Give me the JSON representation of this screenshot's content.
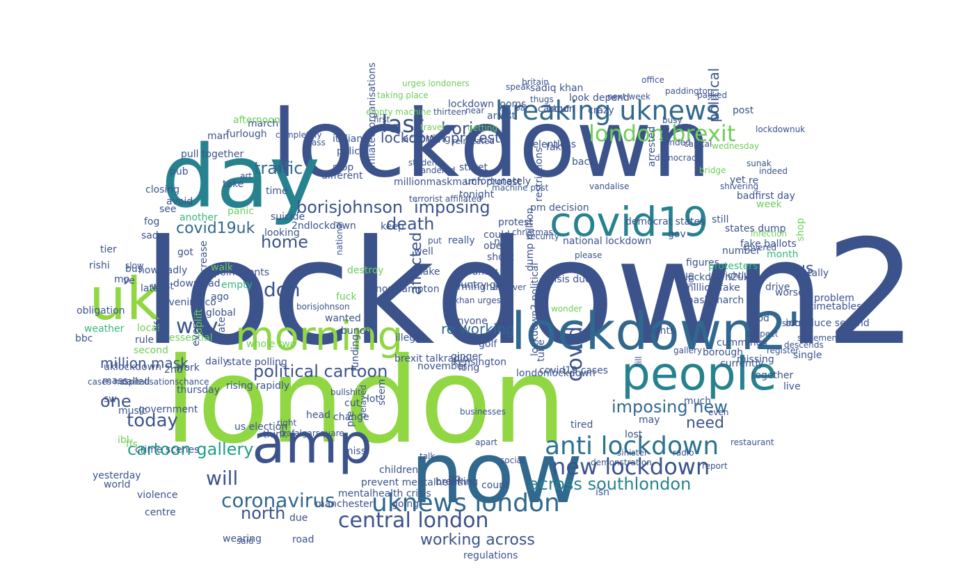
{
  "image": {
    "kind": "word cloud",
    "shape": "cloud",
    "background": "#ffffff",
    "palette": [
      "#3b528b",
      "#31688e",
      "#26828e",
      "#1f9e89",
      "#35b779",
      "#6ece58",
      "#90d743",
      "#b5de2b"
    ]
  },
  "words": [
    {
      "text": "lockdown2",
      "color": "#3b528b"
    },
    {
      "text": "london",
      "color": "#90d743"
    },
    {
      "text": "lockdown",
      "color": "#3b528b"
    },
    {
      "text": "day",
      "color": "#26828e"
    },
    {
      "text": "now",
      "color": "#31688e"
    },
    {
      "text": "amp",
      "color": "#3b528b"
    },
    {
      "text": "uk",
      "color": "#90d743"
    },
    {
      "text": "lockdown2'",
      "color": "#31688e"
    },
    {
      "text": "people",
      "color": "#26828e"
    },
    {
      "text": "covid19",
      "color": "#26828e"
    },
    {
      "text": "morning",
      "color": "#90d743"
    },
    {
      "text": "breaking uknews",
      "color": "#31688e"
    },
    {
      "text": "anti lockdown",
      "color": "#2c728e"
    },
    {
      "text": "uknews london",
      "color": "#31688e"
    },
    {
      "text": "new lockdown",
      "color": "#3b528b"
    },
    {
      "text": "london brexit",
      "color": "#6ece58"
    },
    {
      "text": "central london",
      "color": "#3b528b"
    },
    {
      "text": "coronavirus",
      "color": "#31688e"
    },
    {
      "text": "last",
      "color": "#3b528b"
    },
    {
      "text": "today",
      "color": "#3b528b"
    },
    {
      "text": "way",
      "color": "#3b528b"
    },
    {
      "text": "covid",
      "color": "#3b528b"
    },
    {
      "text": "death",
      "color": "#3b528b"
    },
    {
      "text": "home",
      "color": "#3b528b"
    },
    {
      "text": "don",
      "color": "#3b528b"
    },
    {
      "text": "will",
      "color": "#3b528b"
    },
    {
      "text": "one",
      "color": "#3b528b"
    },
    {
      "text": "north",
      "color": "#3b528b"
    },
    {
      "text": "traffic",
      "color": "#31688e"
    },
    {
      "text": "boris",
      "color": "#3b528b"
    },
    {
      "text": "borisjohnson",
      "color": "#3b528b"
    },
    {
      "text": "imposing",
      "color": "#3b528b"
    },
    {
      "text": "imposing new",
      "color": "#31688e"
    },
    {
      "text": "across southlondon",
      "color": "#26828e"
    },
    {
      "text": "political cartoon",
      "color": "#3b528b"
    },
    {
      "text": "cartoon gallery",
      "color": "#1f9e89"
    },
    {
      "text": "covid19uk",
      "color": "#31688e"
    },
    {
      "text": "lockdown protest",
      "color": "#3b528b"
    },
    {
      "text": "working across",
      "color": "#3b528b"
    },
    {
      "text": "re working",
      "color": "#31688e"
    },
    {
      "text": "affected",
      "color": "#3b528b"
    },
    {
      "text": "need",
      "color": "#3b528b"
    },
    {
      "text": "us",
      "color": "#3b528b"
    },
    {
      "text": "million mask",
      "color": "#3b528b"
    },
    {
      "text": "political",
      "color": "#3b528b"
    },
    {
      "text": "cartoon",
      "color": "#3b528b"
    },
    {
      "text": "sadiq khan",
      "color": "#3b528b"
    },
    {
      "text": "lockdown looms",
      "color": "#3b528b"
    },
    {
      "text": "restrictions",
      "color": "#3b528b"
    },
    {
      "text": "street",
      "color": "#3b528b"
    },
    {
      "text": "unfortunately",
      "color": "#3b528b"
    },
    {
      "text": "tonight",
      "color": "#3b528b"
    },
    {
      "text": "really",
      "color": "#3b528b"
    },
    {
      "text": "well",
      "color": "#3b528b"
    },
    {
      "text": "make",
      "color": "#3b528b"
    },
    {
      "text": "country",
      "color": "#3b528b"
    },
    {
      "text": "country goes",
      "color": "#3b528b"
    },
    {
      "text": "looking",
      "color": "#3b528b"
    },
    {
      "text": "got",
      "color": "#3b528b"
    },
    {
      "text": "gov",
      "color": "#3b528b"
    },
    {
      "text": "states dump",
      "color": "#3b528b"
    },
    {
      "text": "fake ballots",
      "color": "#3b528b"
    },
    {
      "text": "democrat states",
      "color": "#3b528b"
    },
    {
      "text": "national lockdown",
      "color": "#3b528b"
    },
    {
      "text": "million fake",
      "color": "#3b528b"
    },
    {
      "text": "mask march",
      "color": "#3b528b"
    },
    {
      "text": "lockdown2uk",
      "color": "#3b528b"
    },
    {
      "text": "figures",
      "color": "#3b528b"
    },
    {
      "text": "drive",
      "color": "#3b528b"
    },
    {
      "text": "much",
      "color": "#3b528b"
    },
    {
      "text": "may",
      "color": "#3b528b"
    },
    {
      "text": "lost",
      "color": "#3b528b"
    },
    {
      "text": "crisis due",
      "color": "#3b528b"
    },
    {
      "text": "dump million",
      "color": "#3b528b"
    },
    {
      "text": "lockdown2 political",
      "color": "#3b528b"
    },
    {
      "text": "tube",
      "color": "#3b528b"
    },
    {
      "text": "november",
      "color": "#3b528b"
    },
    {
      "text": "long",
      "color": "#3b528b"
    },
    {
      "text": "golf",
      "color": "#3b528b"
    },
    {
      "text": "ginger",
      "color": "#3b528b"
    },
    {
      "text": "rate",
      "color": "#3b528b"
    },
    {
      "text": "global",
      "color": "#3b528b"
    },
    {
      "text": "walk",
      "color": "#6ece58"
    },
    {
      "text": "police",
      "color": "#3b528b"
    },
    {
      "text": "take",
      "color": "#3b528b"
    },
    {
      "text": "time",
      "color": "#3b528b"
    },
    {
      "text": "see",
      "color": "#3b528b"
    },
    {
      "text": "bus",
      "color": "#3b528b"
    },
    {
      "text": "fog",
      "color": "#3b528b"
    },
    {
      "text": "sad",
      "color": "#3b528b"
    },
    {
      "text": "pub",
      "color": "#3b528b"
    },
    {
      "text": "march",
      "color": "#3b528b"
    },
    {
      "text": "furlough",
      "color": "#3b528b"
    },
    {
      "text": "italian",
      "color": "#3b528b"
    },
    {
      "text": "stop",
      "color": "#3b528b"
    },
    {
      "text": "pull together",
      "color": "#3b528b"
    },
    {
      "text": "man",
      "color": "#3b528b"
    },
    {
      "text": "now sadly",
      "color": "#3b528b"
    },
    {
      "text": "mp",
      "color": "#3b528b"
    },
    {
      "text": "ve",
      "color": "#3b528b"
    },
    {
      "text": "slow",
      "color": "#3b528b"
    },
    {
      "text": "rishi",
      "color": "#3b528b"
    },
    {
      "text": "tier",
      "color": "#3b528b"
    },
    {
      "text": "west",
      "color": "#3b528b"
    },
    {
      "text": "another",
      "color": "#35b779"
    },
    {
      "text": "afternoon",
      "color": "#6ece58"
    },
    {
      "text": "empty",
      "color": "#35b779"
    },
    {
      "text": "weather",
      "color": "#35b779"
    },
    {
      "text": "essential",
      "color": "#6ece58"
    },
    {
      "text": "second",
      "color": "#6ece58"
    },
    {
      "text": "work",
      "color": "#3b528b"
    },
    {
      "text": "mass",
      "color": "#3b528b"
    },
    {
      "text": "thursday",
      "color": "#3b528b"
    },
    {
      "text": "sw",
      "color": "#3b528b"
    },
    {
      "text": "government",
      "color": "#3b528b"
    },
    {
      "text": "music",
      "color": "#3b528b"
    },
    {
      "text": "us election",
      "color": "#3b528b"
    },
    {
      "text": "rising rapidly",
      "color": "#3b528b"
    },
    {
      "text": "head",
      "color": "#3b528b"
    },
    {
      "text": "road",
      "color": "#3b528b"
    },
    {
      "text": "wearing",
      "color": "#3b528b"
    },
    {
      "text": "due",
      "color": "#3b528b"
    },
    {
      "text": "world",
      "color": "#3b528b"
    },
    {
      "text": "violence",
      "color": "#3b528b"
    },
    {
      "text": "manchester",
      "color": "#3b528b"
    },
    {
      "text": "mentalhealth crisis",
      "color": "#3b528b"
    },
    {
      "text": "prevent mentalhealth",
      "color": "#3b528b"
    },
    {
      "text": "children",
      "color": "#3b528b"
    },
    {
      "text": "going",
      "color": "#3b528b"
    },
    {
      "text": "seem",
      "color": "#3b528b"
    },
    {
      "text": "lot",
      "color": "#3b528b"
    },
    {
      "text": "cut",
      "color": "#3b528b"
    },
    {
      "text": "change",
      "color": "#3b528b"
    },
    {
      "text": "funding",
      "color": "#3b528b"
    },
    {
      "text": "pre",
      "color": "#3b528b"
    },
    {
      "text": "go",
      "color": "#3b528b"
    },
    {
      "text": "breaking",
      "color": "#3b528b"
    },
    {
      "text": "count",
      "color": "#3b528b"
    },
    {
      "text": "isn",
      "color": "#3b528b"
    },
    {
      "text": "tired",
      "color": "#3b528b"
    },
    {
      "text": "currently",
      "color": "#3b528b"
    },
    {
      "text": "missing",
      "color": "#3b528b"
    },
    {
      "text": "together",
      "color": "#3b528b"
    },
    {
      "text": "live",
      "color": "#3b528b"
    },
    {
      "text": "borough",
      "color": "#3b528b"
    },
    {
      "text": "cummings",
      "color": "#3b528b"
    },
    {
      "text": "flights",
      "color": "#3b528b"
    },
    {
      "text": "covid19 cases",
      "color": "#3b528b"
    },
    {
      "text": "londonlockdown",
      "color": "#3b528b"
    },
    {
      "text": "introduce second",
      "color": "#3b528b"
    },
    {
      "text": "timetables",
      "color": "#3b528b"
    },
    {
      "text": "food",
      "color": "#3b528b"
    },
    {
      "text": "worse",
      "color": "#3b528b"
    },
    {
      "text": "totally",
      "color": "#3b528b"
    },
    {
      "text": "problem",
      "color": "#3b528b"
    },
    {
      "text": "protesters",
      "color": "#35b779"
    },
    {
      "text": "month",
      "color": "#35b779"
    },
    {
      "text": "week",
      "color": "#6ece58"
    },
    {
      "text": "badfirst day",
      "color": "#3b528b"
    },
    {
      "text": "yet",
      "color": "#3b528b"
    },
    {
      "text": "re",
      "color": "#3b528b"
    },
    {
      "text": "coming",
      "color": "#3b528b"
    },
    {
      "text": "arrested",
      "color": "#3b528b"
    },
    {
      "text": "still",
      "color": "#3b528b"
    },
    {
      "text": "number",
      "color": "#3b528b"
    },
    {
      "text": "appointments",
      "color": "#3b528b"
    },
    {
      "text": "every",
      "color": "#3b528b"
    },
    {
      "text": "ago",
      "color": "#3b528b"
    },
    {
      "text": "look",
      "color": "#3b528b"
    },
    {
      "text": "hour",
      "color": "#3b528b"
    },
    {
      "text": "fake",
      "color": "#3b528b"
    },
    {
      "text": "crazy",
      "color": "#3b528b"
    },
    {
      "text": "back",
      "color": "#3b528b"
    },
    {
      "text": "protest",
      "color": "#3b528b"
    },
    {
      "text": "panic",
      "color": "#6ece58"
    },
    {
      "text": "suicide",
      "color": "#3b528b"
    },
    {
      "text": "2ndlockdown",
      "color": "#3b528b"
    },
    {
      "text": "closing",
      "color": "#3b528b"
    },
    {
      "text": "avoid",
      "color": "#3b528b"
    },
    {
      "text": "state polling",
      "color": "#3b528b"
    },
    {
      "text": "daily",
      "color": "#3b528b"
    },
    {
      "text": "single",
      "color": "#3b528b"
    },
    {
      "text": "shop",
      "color": "#6ece58"
    },
    {
      "text": "wonder",
      "color": "#6ece58"
    },
    {
      "text": "miss",
      "color": "#3b528b"
    },
    {
      "text": "increase",
      "color": "#3b528b"
    },
    {
      "text": "uklockdown",
      "color": "#3b528b"
    },
    {
      "text": "2nd",
      "color": "#3b528b"
    },
    {
      "text": "cases hospitalisationschance",
      "color": "#3b528b"
    },
    {
      "text": "crime scenes",
      "color": "#3b528b"
    },
    {
      "text": "obligation",
      "color": "#3b528b"
    },
    {
      "text": "regulations",
      "color": "#3b528b"
    },
    {
      "text": "kensington",
      "color": "#3b528b"
    },
    {
      "text": "brexit talkradio",
      "color": "#3b528b"
    },
    {
      "text": "illegal",
      "color": "#3b528b"
    },
    {
      "text": "evening co",
      "color": "#3b528b"
    },
    {
      "text": "download",
      "color": "#3b528b"
    },
    {
      "text": "latest",
      "color": "#3b528b"
    },
    {
      "text": "bbc",
      "color": "#3b528b"
    },
    {
      "text": "called",
      "color": "#3b528b"
    },
    {
      "text": "yesterday",
      "color": "#3b528b"
    },
    {
      "text": "centre",
      "color": "#3b528b"
    },
    {
      "text": "said",
      "color": "#3b528b"
    },
    {
      "text": "think",
      "color": "#3b528b"
    },
    {
      "text": "right",
      "color": "#3b528b"
    },
    {
      "text": "trafalgarsquare",
      "color": "#3b528b"
    },
    {
      "text": "bullshit",
      "color": "#3b528b"
    },
    {
      "text": "anyone",
      "color": "#3b528b"
    },
    {
      "text": "birmingham",
      "color": "#3b528b"
    },
    {
      "text": "northampton",
      "color": "#3b528b"
    },
    {
      "text": "keep",
      "color": "#3b528b"
    },
    {
      "text": "destroy",
      "color": "#6ece58"
    },
    {
      "text": "fuck",
      "color": "#6ece58"
    },
    {
      "text": "ffs",
      "color": "#6ece58"
    },
    {
      "text": "ibl",
      "color": "#6ece58"
    },
    {
      "text": "uplift",
      "color": "#6ece58"
    },
    {
      "text": "whole two",
      "color": "#6ece58"
    },
    {
      "text": "local",
      "color": "#6ece58"
    },
    {
      "text": "life",
      "color": "#3b528b"
    },
    {
      "text": "rule",
      "color": "#3b528b"
    },
    {
      "text": "new",
      "color": "#3b528b"
    },
    {
      "text": "could",
      "color": "#3b528b"
    },
    {
      "text": "obey",
      "color": "#3b528b"
    },
    {
      "text": "shoot",
      "color": "#3b528b"
    },
    {
      "text": "please",
      "color": "#3b528b"
    },
    {
      "text": "put",
      "color": "#3b528b"
    },
    {
      "text": "bunch",
      "color": "#3b528b"
    },
    {
      "text": "diver",
      "color": "#3b528b"
    },
    {
      "text": "christmas",
      "color": "#3b528b"
    },
    {
      "text": "khan urges",
      "color": "#3b528b"
    },
    {
      "text": "wanted",
      "color": "#3b528b"
    },
    {
      "text": "borisjohnson",
      "color": "#3b528b"
    },
    {
      "text": "national",
      "color": "#3b528b"
    },
    {
      "text": "millionmaskmarch protest",
      "color": "#3b528b"
    },
    {
      "text": "affiliated organisations",
      "color": "#3b528b"
    },
    {
      "text": "terrorist affiliated",
      "color": "#3b528b"
    },
    {
      "text": "machine post",
      "color": "#3b528b"
    },
    {
      "text": "security",
      "color": "#3b528b"
    },
    {
      "text": "pm decision",
      "color": "#3b528b"
    },
    {
      "text": "different",
      "color": "#3b528b"
    },
    {
      "text": "glass",
      "color": "#3b528b"
    },
    {
      "text": "art",
      "color": "#3b528b"
    },
    {
      "text": "say",
      "color": "#3b528b"
    },
    {
      "text": "according",
      "color": "#3b528b"
    },
    {
      "text": "relentless",
      "color": "#3b528b"
    },
    {
      "text": "depend",
      "color": "#3b528b"
    },
    {
      "text": "post",
      "color": "#3b528b"
    },
    {
      "text": "arrest",
      "color": "#3b528b"
    },
    {
      "text": "packed",
      "color": "#3b528b"
    },
    {
      "text": "wednesday",
      "color": "#6ece58"
    },
    {
      "text": "bridge",
      "color": "#6ece58"
    },
    {
      "text": "ended",
      "color": "#3b528b"
    },
    {
      "text": "busy",
      "color": "#3b528b"
    },
    {
      "text": "capital",
      "color": "#3b528b"
    },
    {
      "text": "sunak",
      "color": "#3b528b"
    },
    {
      "text": "indeed",
      "color": "#3b528b"
    },
    {
      "text": "infection",
      "color": "#6ece58"
    },
    {
      "text": "covered",
      "color": "#3b528b"
    },
    {
      "text": "brightly",
      "color": "#3b528b"
    },
    {
      "text": "stuck",
      "color": "#3b528b"
    },
    {
      "text": "descends",
      "color": "#3b528b"
    },
    {
      "text": "statement",
      "color": "#3b528b"
    },
    {
      "text": "register",
      "color": "#3b528b"
    },
    {
      "text": "gallery",
      "color": "#3b528b"
    },
    {
      "text": "suspect",
      "color": "#3b528b"
    },
    {
      "text": "radio",
      "color": "#3b528b"
    },
    {
      "text": "restaurant",
      "color": "#3b528b"
    },
    {
      "text": "report",
      "color": "#3b528b"
    },
    {
      "text": "demonstration",
      "color": "#3b528b"
    },
    {
      "text": "sinister",
      "color": "#3b528b"
    },
    {
      "text": "social",
      "color": "#3b528b"
    },
    {
      "text": "businesses",
      "color": "#3b528b"
    },
    {
      "text": "talk",
      "color": "#3b528b"
    },
    {
      "text": "apart",
      "color": "#3b528b"
    },
    {
      "text": "even",
      "color": "#3b528b"
    },
    {
      "text": "till",
      "color": "#3b528b"
    },
    {
      "text": "job",
      "color": "#3b528b"
    },
    {
      "text": "delayed",
      "color": "#3b528b"
    },
    {
      "text": "urges londoners",
      "color": "#6ece58"
    },
    {
      "text": "taking place",
      "color": "#6ece58"
    },
    {
      "text": "empty machine",
      "color": "#6ece58"
    },
    {
      "text": "thirteen",
      "color": "#3b528b"
    },
    {
      "text": "near",
      "color": "#3b528b"
    },
    {
      "text": "next week",
      "color": "#3b528b"
    },
    {
      "text": "britain",
      "color": "#3b528b"
    },
    {
      "text": "office",
      "color": "#3b528b"
    },
    {
      "text": "thugs",
      "color": "#3b528b"
    },
    {
      "text": "bar",
      "color": "#3b528b"
    },
    {
      "text": "speak",
      "color": "#3b528b"
    },
    {
      "text": "paddington",
      "color": "#3b528b"
    },
    {
      "text": "democracy",
      "color": "#3b528b"
    },
    {
      "text": "students",
      "color": "#3b528b"
    },
    {
      "text": "wandered",
      "color": "#3b528b"
    },
    {
      "text": "first",
      "color": "#3b528b"
    },
    {
      "text": "travel",
      "color": "#6ece58"
    },
    {
      "text": "getting",
      "color": "#6ece58"
    },
    {
      "text": "reinstated",
      "color": "#3b528b"
    },
    {
      "text": "shivering",
      "color": "#3b528b"
    },
    {
      "text": "completely",
      "color": "#3b528b"
    },
    {
      "text": "vandalise",
      "color": "#3b528b"
    },
    {
      "text": "lockdownuk",
      "color": "#3b528b"
    },
    {
      "text": "kenforcements",
      "color": "#3b528b"
    },
    {
      "text": "remember",
      "color": "#6ece58"
    },
    {
      "text": "hours",
      "color": "#6ece58"
    }
  ]
}
